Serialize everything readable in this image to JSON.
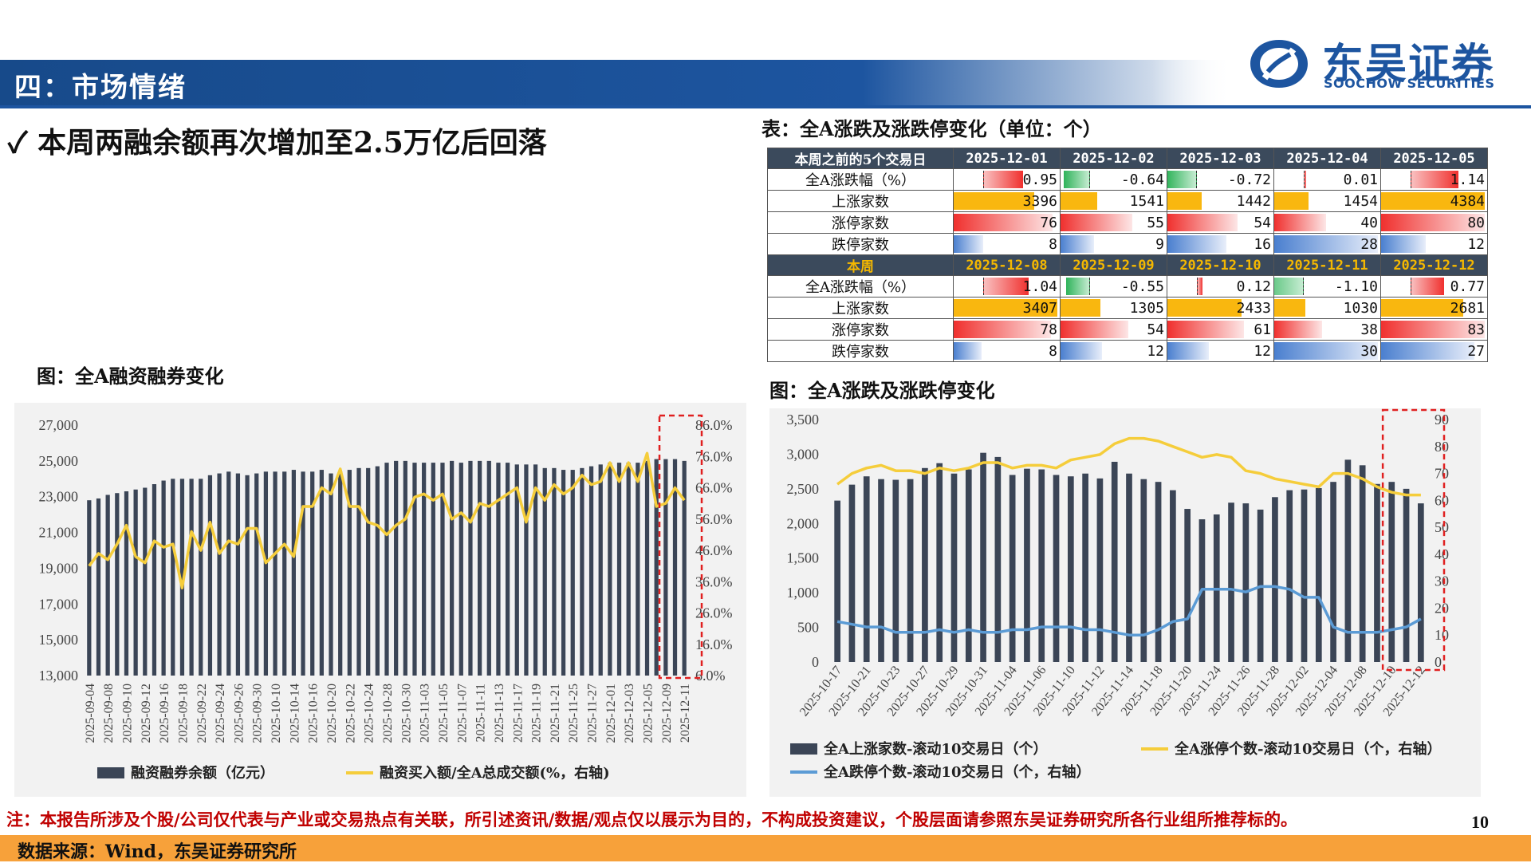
{
  "header": {
    "section_title": "四：市场情绪",
    "logo_cn": "东吴证券",
    "logo_en": "SOOCHOW SECURITIES"
  },
  "headline": "✓ 本周两融余额再次增加至2.5万亿后回落",
  "table": {
    "caption": "表：全A涨跌及涨跌停变化（单位：个）",
    "block1": {
      "label": "本周之前的5个交易日",
      "dates": [
        "2025-12-01",
        "2025-12-02",
        "2025-12-03",
        "2025-12-04",
        "2025-12-05"
      ],
      "rows": [
        {
          "label": "全A涨跌幅（%）",
          "values": [
            "0.95",
            "-0.64",
            "-0.72",
            "0.01",
            "1.14"
          ],
          "nums": [
            0.95,
            -0.64,
            -0.72,
            0.01,
            1.14
          ]
        },
        {
          "label": "上涨家数",
          "values": [
            "3396",
            "1541",
            "1442",
            "1454",
            "4384"
          ],
          "nums": [
            3396,
            1541,
            1442,
            1454,
            4384
          ]
        },
        {
          "label": "涨停家数",
          "values": [
            "76",
            "55",
            "54",
            "40",
            "80"
          ],
          "nums": [
            76,
            55,
            54,
            40,
            80
          ]
        },
        {
          "label": "跌停家数",
          "values": [
            "8",
            "9",
            "16",
            "28",
            "12"
          ],
          "nums": [
            8,
            9,
            16,
            28,
            12
          ]
        }
      ]
    },
    "block2": {
      "label": "本周",
      "dates": [
        "2025-12-08",
        "2025-12-09",
        "2025-12-10",
        "2025-12-11",
        "2025-12-12"
      ],
      "rows": [
        {
          "label": "全A涨跌幅（%）",
          "values": [
            "1.04",
            "-0.55",
            "0.12",
            "-1.10",
            "0.77"
          ],
          "nums": [
            1.04,
            -0.55,
            0.12,
            -1.1,
            0.77
          ]
        },
        {
          "label": "上涨家数",
          "values": [
            "3407",
            "1305",
            "2433",
            "1030",
            "2681"
          ],
          "nums": [
            3407,
            1305,
            2433,
            1030,
            2681
          ]
        },
        {
          "label": "涨停家数",
          "values": [
            "78",
            "54",
            "61",
            "38",
            "83"
          ],
          "nums": [
            78,
            54,
            61,
            38,
            83
          ]
        },
        {
          "label": "跌停家数",
          "values": [
            "8",
            "12",
            "12",
            "30",
            "27"
          ],
          "nums": [
            8,
            12,
            12,
            30,
            27
          ]
        }
      ]
    },
    "colors": {
      "up": "#f0302e",
      "down": "#2fb35a",
      "orange": "#f9b70f",
      "blue": "#4a7fcf",
      "header": "#3b4a5c",
      "week": "#f5b800"
    }
  },
  "chart1_caption": "图：全A融资融券变化",
  "chart2_caption": "图：全A涨跌及涨跌停变化",
  "chart_data": [
    {
      "type": "bar",
      "categories": [
        "2025-09-04",
        "2025-09-05",
        "2025-09-08",
        "2025-09-09",
        "2025-09-10",
        "2025-09-11",
        "2025-09-12",
        "2025-09-15",
        "2025-09-16",
        "2025-09-17",
        "2025-09-18",
        "2025-09-19",
        "2025-09-22",
        "2025-09-23",
        "2025-09-24",
        "2025-09-25",
        "2025-09-26",
        "2025-09-29",
        "2025-09-30",
        "2025-10-09",
        "2025-10-10",
        "2025-10-13",
        "2025-10-14",
        "2025-10-15",
        "2025-10-16",
        "2025-10-17",
        "2025-10-20",
        "2025-10-21",
        "2025-10-22",
        "2025-10-23",
        "2025-10-24",
        "2025-10-27",
        "2025-10-28",
        "2025-10-29",
        "2025-10-30",
        "2025-10-31",
        "2025-11-03",
        "2025-11-04",
        "2025-11-05",
        "2025-11-06",
        "2025-11-07",
        "2025-11-10",
        "2025-11-11",
        "2025-11-12",
        "2025-11-13",
        "2025-11-14",
        "2025-11-17",
        "2025-11-18",
        "2025-11-19",
        "2025-11-20",
        "2025-11-21",
        "2025-11-24",
        "2025-11-25",
        "2025-11-26",
        "2025-11-27",
        "2025-11-28",
        "2025-12-01",
        "2025-12-02",
        "2025-12-03",
        "2025-12-04",
        "2025-12-05",
        "2025-12-08",
        "2025-12-09",
        "2025-12-10",
        "2025-12-11"
      ],
      "tick_labels": [
        "2025-09-04",
        "2025-09-08",
        "2025-09-10",
        "2025-09-12",
        "2025-09-16",
        "2025-09-18",
        "2025-09-22",
        "2025-09-24",
        "2025-09-26",
        "2025-09-30",
        "2025-10-10",
        "2025-10-14",
        "2025-10-16",
        "2025-10-20",
        "2025-10-22",
        "2025-10-24",
        "2025-10-28",
        "2025-10-30",
        "2025-11-03",
        "2025-11-05",
        "2025-11-07",
        "2025-11-11",
        "2025-11-13",
        "2025-11-17",
        "2025-11-19",
        "2025-11-21",
        "2025-11-25",
        "2025-11-27",
        "2025-12-01",
        "2025-12-03",
        "2025-12-05",
        "2025-12-09",
        "2025-12-11"
      ],
      "series": [
        {
          "name": "融资融券余额（亿元）",
          "type": "bar",
          "axis": "left",
          "values": [
            22800,
            22900,
            23100,
            23200,
            23300,
            23400,
            23500,
            23700,
            23900,
            24000,
            24000,
            24000,
            24000,
            24200,
            24300,
            24400,
            24300,
            24200,
            24300,
            24400,
            24400,
            24400,
            24500,
            24400,
            24400,
            24500,
            24300,
            24400,
            24500,
            24600,
            24600,
            24700,
            24900,
            25000,
            25000,
            24900,
            24900,
            24900,
            24900,
            25000,
            24900,
            25000,
            25000,
            25000,
            24900,
            24900,
            24800,
            24800,
            24800,
            24600,
            24600,
            24500,
            24500,
            24600,
            24700,
            24800,
            24900,
            24900,
            24900,
            24900,
            25000,
            25100,
            25100,
            25100,
            25000
          ]
        },
        {
          "name": "融资买入额/全A总成交额(%，右轴)",
          "type": "line",
          "axis": "right",
          "values": [
            41,
            45,
            43,
            48,
            54,
            44,
            42,
            49,
            47,
            48,
            34,
            52,
            46,
            55,
            45,
            49,
            48,
            53,
            53,
            42,
            45,
            48,
            44,
            60,
            60,
            66,
            64,
            72,
            60,
            60,
            55,
            54,
            51,
            54,
            56,
            63,
            64,
            62,
            64,
            56,
            58,
            55,
            61,
            60,
            62,
            64,
            66,
            55,
            66,
            62,
            67,
            64,
            66,
            70,
            67,
            68,
            74,
            68,
            74,
            68,
            77,
            60,
            61,
            66,
            62
          ]
        }
      ],
      "ylim_left": [
        13000,
        27000
      ],
      "yticks_left": [
        "27,000",
        "25,000",
        "23,000",
        "21,000",
        "19,000",
        "17,000",
        "15,000",
        "13,000"
      ],
      "ylim_right": [
        6,
        86
      ],
      "yticks_right": [
        "86.0%",
        "76.0%",
        "66.0%",
        "56.0%",
        "46.0%",
        "36.0%",
        "26.0%",
        "16.0%",
        "6.0%"
      ],
      "highlight": "last 3 bars boxed with red dashed frame",
      "colors": {
        "bar": "#3b4556",
        "line": "#f5cd3b",
        "box": "#e02020"
      }
    },
    {
      "type": "bar",
      "categories": [
        "2025-10-17",
        "2025-10-20",
        "2025-10-21",
        "2025-10-22",
        "2025-10-23",
        "2025-10-24",
        "2025-10-27",
        "2025-10-28",
        "2025-10-29",
        "2025-10-30",
        "2025-10-31",
        "2025-11-03",
        "2025-11-04",
        "2025-11-05",
        "2025-11-06",
        "2025-11-07",
        "2025-11-10",
        "2025-11-11",
        "2025-11-12",
        "2025-11-13",
        "2025-11-14",
        "2025-11-17",
        "2025-11-18",
        "2025-11-19",
        "2025-11-20",
        "2025-11-21",
        "2025-11-24",
        "2025-11-25",
        "2025-11-26",
        "2025-11-27",
        "2025-11-28",
        "2025-12-01",
        "2025-12-02",
        "2025-12-03",
        "2025-12-04",
        "2025-12-05",
        "2025-12-08",
        "2025-12-09",
        "2025-12-10",
        "2025-12-11",
        "2025-12-12"
      ],
      "tick_labels": [
        "2025-10-17",
        "2025-10-21",
        "2025-10-23",
        "2025-10-27",
        "2025-10-29",
        "2025-10-31",
        "2025-11-04",
        "2025-11-06",
        "2025-11-10",
        "2025-11-12",
        "2025-11-14",
        "2025-11-18",
        "2025-11-20",
        "2025-11-24",
        "2025-11-26",
        "2025-11-28",
        "2025-12-02",
        "2025-12-04",
        "2025-12-08",
        "2025-12-10",
        "2025-12-12"
      ],
      "series": [
        {
          "name": "全A上涨家数-滚动10交易日（个）",
          "type": "bar",
          "axis": "left",
          "values": [
            2330,
            2560,
            2680,
            2640,
            2630,
            2640,
            2800,
            2870,
            2720,
            2780,
            3020,
            2960,
            2700,
            2790,
            2780,
            2700,
            2680,
            2720,
            2650,
            2890,
            2720,
            2640,
            2600,
            2480,
            2210,
            2060,
            2130,
            2300,
            2290,
            2200,
            2380,
            2480,
            2490,
            2510,
            2600,
            2920,
            2840,
            2570,
            2600,
            2500,
            2290
          ]
        },
        {
          "name": "全A涨停个数-滚动10交易日（个，右轴）",
          "type": "line",
          "axis": "right",
          "values": [
            66,
            70,
            72,
            73,
            71,
            71,
            70,
            72,
            71,
            72,
            74,
            74,
            72,
            73,
            73,
            72,
            75,
            76,
            77,
            81,
            83,
            83,
            82,
            80,
            78,
            76,
            77,
            76,
            71,
            70,
            68,
            67,
            66,
            65,
            70,
            70,
            68,
            65,
            63,
            62,
            62
          ]
        },
        {
          "name": "全A跌停个数-滚动10交易日（个，右轴）",
          "type": "line",
          "axis": "right",
          "values": [
            15,
            14,
            13,
            13,
            11,
            11,
            11,
            12,
            11,
            12,
            11,
            11,
            12,
            12,
            13,
            13,
            13,
            12,
            12,
            11,
            10,
            10,
            12,
            15,
            16,
            27,
            27,
            27,
            26,
            28,
            28,
            27,
            24,
            24,
            13,
            11,
            11,
            11,
            12,
            13,
            16
          ]
        }
      ],
      "ylim_left": [
        0,
        3500
      ],
      "yticks_left": [
        "3,500",
        "3,000",
        "2,500",
        "2,000",
        "1,500",
        "1,000",
        "500",
        "0"
      ],
      "ylim_right": [
        0,
        90
      ],
      "yticks_right": [
        "90",
        "80",
        "70",
        "60",
        "50",
        "40",
        "30",
        "20",
        "10",
        "0"
      ],
      "highlight": "last 3 points boxed with red dashed frame",
      "colors": {
        "bar": "#3b4556",
        "up_line": "#f5cd3b",
        "down_line": "#5b9bd5",
        "box": "#e02020"
      }
    }
  ],
  "note": "注：本报告所涉及个股/公司仅代表与产业或交易热点有关联，所引述资讯/数据/观点仅以展示为目的，不构成投资建议，个股层面请参照东吴证券研究所各行业组所推荐标的。",
  "page_number": "10",
  "source": "数据来源：Wind，东吴证券研究所"
}
